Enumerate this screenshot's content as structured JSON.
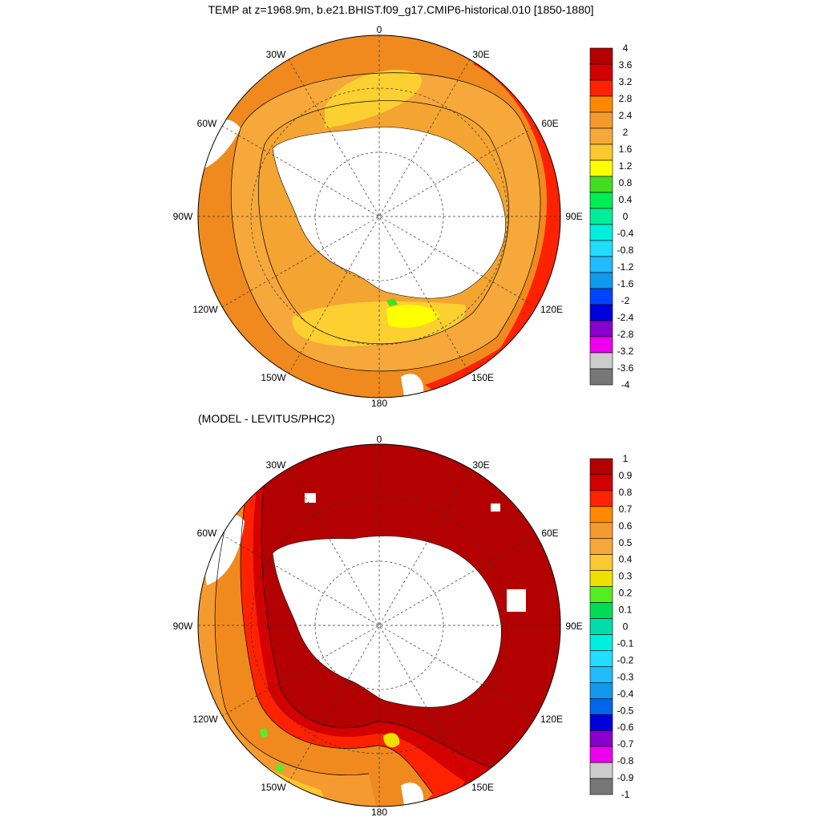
{
  "top_panel": {
    "title": "TEMP at z=1968.9m, b.e21.BHIST.f09_g17.CMIP6-historical.010 [1850-1880]",
    "longitude_labels": [
      "0",
      "30E",
      "60E",
      "90E",
      "120E",
      "150E",
      "180",
      "150W",
      "120W",
      "90W",
      "60W",
      "30W"
    ],
    "colorbar": {
      "labels": [
        "4",
        "3.6",
        "3.2",
        "2.8",
        "2.4",
        "2",
        "1.6",
        "1.2",
        "0.8",
        "0.4",
        "0",
        "-0.4",
        "-0.8",
        "-1.2",
        "-1.6",
        "-2",
        "-2.4",
        "-2.8",
        "-3.2",
        "-3.6",
        "-4"
      ],
      "colors": [
        "#b30000",
        "#d40000",
        "#ff2200",
        "#ff8800",
        "#f59a2e",
        "#f7a83a",
        "#fbc830",
        "#ffff00",
        "#44dd22",
        "#00ee55",
        "#00ee99",
        "#00eedd",
        "#22ddff",
        "#22bbff",
        "#1199ee",
        "#0044ff",
        "#0000dd",
        "#8800cc",
        "#ee00ee",
        "#cccccc",
        "#777777"
      ]
    }
  },
  "bottom_panel": {
    "title": "(MODEL - LEVITUS/PHC2)",
    "longitude_labels": [
      "0",
      "30E",
      "60E",
      "90E",
      "120E",
      "150E",
      "180",
      "150W",
      "120W",
      "90W",
      "60W",
      "30W"
    ],
    "colorbar": {
      "labels": [
        "1",
        "0.9",
        "0.8",
        "0.7",
        "0.6",
        "0.5",
        "0.4",
        "0.3",
        "0.2",
        "0.1",
        "0",
        "-0.1",
        "-0.2",
        "-0.3",
        "-0.4",
        "-0.5",
        "-0.6",
        "-0.7",
        "-0.8",
        "-0.9",
        "-1"
      ],
      "colors": [
        "#b30000",
        "#d40000",
        "#ff2200",
        "#ff8800",
        "#f59a2e",
        "#f7a83a",
        "#fbc830",
        "#f0e000",
        "#55ee22",
        "#00dd55",
        "#00ddaa",
        "#00eedd",
        "#22ddff",
        "#22bbff",
        "#1199ee",
        "#0066ee",
        "#0000dd",
        "#8800cc",
        "#ee00ee",
        "#cccccc",
        "#777777"
      ]
    }
  }
}
